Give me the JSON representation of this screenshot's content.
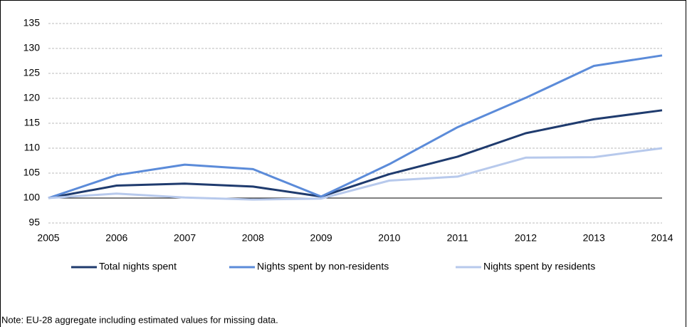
{
  "chart_data": {
    "type": "line",
    "x": [
      2005,
      2006,
      2007,
      2008,
      2009,
      2010,
      2011,
      2012,
      2013,
      2014
    ],
    "series": [
      {
        "name": "Total nights spent",
        "color": "#1f3b6e",
        "values": [
          100,
          102.5,
          102.9,
          102.3,
          100.3,
          104.8,
          108.3,
          113,
          115.8,
          117.6
        ]
      },
      {
        "name": "Nights spent by non-residents",
        "color": "#5b8bd9",
        "values": [
          100,
          104.6,
          106.7,
          105.8,
          100.3,
          106.8,
          114.2,
          120.1,
          126.5,
          128.6
        ]
      },
      {
        "name": "Nights spent by residents",
        "color": "#b7c9ec",
        "values": [
          100,
          100.9,
          100.1,
          99.7,
          99.9,
          103.5,
          104.3,
          108.1,
          108.2,
          110
        ]
      }
    ],
    "xlim": [
      2005,
      2014
    ],
    "xticks": [
      2005,
      2006,
      2007,
      2008,
      2009,
      2010,
      2011,
      2012,
      2013,
      2014
    ],
    "ylim": [
      95,
      135
    ],
    "yticks": [
      95,
      100,
      105,
      110,
      115,
      120,
      125,
      130,
      135
    ],
    "grid": true,
    "reference_line": 100,
    "legend": "bottom",
    "note": "Note: EU-28 aggregate including estimated values for missing data."
  }
}
